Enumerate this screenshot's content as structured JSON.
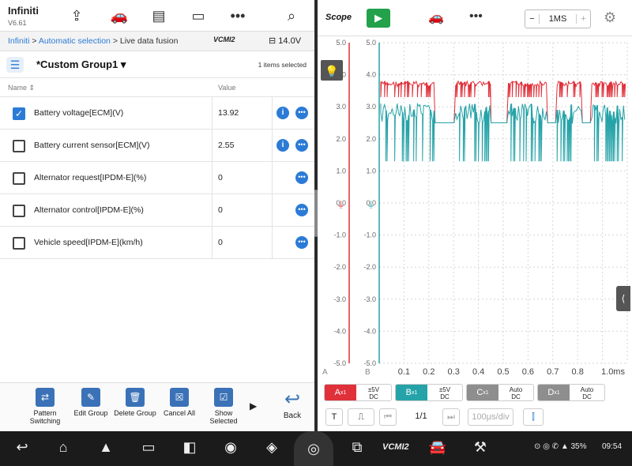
{
  "left": {
    "app_name": "Infiniti",
    "app_version": "V6.61",
    "breadcrumb": {
      "part1": "Infiniti",
      "part2": "Automatic selection",
      "part3": "Live data fusion"
    },
    "vci": "VCMI2",
    "voltage": "14.0V",
    "group_name": "*Custom Group1",
    "items_selected": "1 items selected",
    "col_name": "Name",
    "col_value": "Value",
    "rows": [
      {
        "name": "Battery voltage[ECM](V)",
        "value": "13.92",
        "checked": true,
        "info": true
      },
      {
        "name": "Battery current sensor[ECM](V)",
        "value": "2.55",
        "checked": false,
        "info": true
      },
      {
        "name": "Alternator request[IPDM-E](%)",
        "value": "0",
        "checked": false,
        "info": false
      },
      {
        "name": "Alternator control[IPDM-E](%)",
        "value": "0",
        "checked": false,
        "info": false
      },
      {
        "name": "Vehicle speed[IPDM-E](km/h)",
        "value": "0",
        "checked": false,
        "info": false
      }
    ],
    "footer": {
      "pattern_switching": "Pattern Switching",
      "edit_group": "Edit Group",
      "delete_group": "Delete Group",
      "cancel_all": "Cancel All",
      "show_selected": "Show Selected",
      "back": "Back"
    }
  },
  "right": {
    "scope_label": "Scope",
    "timebase": "1MS",
    "channels": [
      {
        "label": "A",
        "sub": "x1",
        "cfg1": "±5V",
        "cfg2": "DC",
        "color": "#e0303a"
      },
      {
        "label": "B",
        "sub": "x1",
        "cfg1": "±5V",
        "cfg2": "DC",
        "color": "#26a3a8"
      },
      {
        "label": "C",
        "sub": "x1",
        "cfg1": "Auto",
        "cfg2": "DC",
        "color": "#8e8e8e"
      },
      {
        "label": "D",
        "sub": "x1",
        "cfg1": "Auto",
        "cfg2": "DC",
        "color": "#8e8e8e"
      }
    ],
    "page": "1/1",
    "time_div": "100μs/div",
    "trigger_T": "T"
  },
  "chart_data": {
    "type": "line",
    "ylim": [
      -5,
      5
    ],
    "xlim": [
      0,
      1
    ],
    "y_ticks": [
      "5.0",
      "4.0",
      "3.0",
      "2.0",
      "1.0",
      "0.0",
      "-1.0",
      "-2.0",
      "-3.0",
      "-4.0",
      "-5.0"
    ],
    "x_ticks": [
      "0.1",
      "0.2",
      "0.3",
      "0.4",
      "0.5",
      "0.6",
      "0.7",
      "0.8",
      "1.0ms"
    ],
    "series": [
      {
        "name": "A",
        "color": "#e0303a",
        "high": 3.8,
        "low": 3.3,
        "baseline": 2.5
      },
      {
        "name": "B",
        "color": "#26a3a8",
        "high": 3.1,
        "low": 1.3,
        "baseline": 2.5
      }
    ]
  },
  "status": {
    "time": "09:54",
    "battery": "35%",
    "vci_label": "VCMI2"
  }
}
